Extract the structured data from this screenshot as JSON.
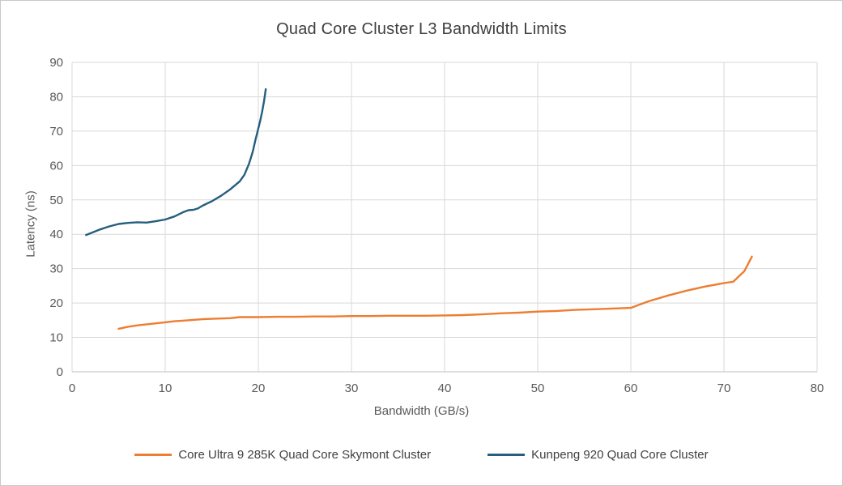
{
  "chart_data": {
    "type": "line",
    "title": "Quad Core Cluster L3 Bandwidth Limits",
    "xlabel": "Bandwidth (GB/s)",
    "ylabel": "Latency (ns)",
    "xlim": [
      0,
      80
    ],
    "ylim": [
      0,
      90
    ],
    "xtick_step": 10,
    "ytick_step": 10,
    "grid": true,
    "legend_position": "bottom",
    "colors": {
      "gridline": "#d9d9d9",
      "axis_line": "#bfbfbf",
      "tick_text": "#595959",
      "title_text": "#3f3f3f"
    },
    "series": [
      {
        "name": "Core Ultra 9 285K Quad Core Skymont Cluster",
        "color": "#ED7D31",
        "points": [
          [
            5,
            12.5
          ],
          [
            6,
            13.1
          ],
          [
            7,
            13.5
          ],
          [
            8,
            13.8
          ],
          [
            9,
            14.1
          ],
          [
            10,
            14.4
          ],
          [
            11,
            14.7
          ],
          [
            12,
            14.9
          ],
          [
            13,
            15.1
          ],
          [
            14,
            15.3
          ],
          [
            15,
            15.4
          ],
          [
            16,
            15.5
          ],
          [
            17,
            15.6
          ],
          [
            18,
            15.9
          ],
          [
            20,
            15.9
          ],
          [
            22,
            16.0
          ],
          [
            24,
            16.0
          ],
          [
            26,
            16.1
          ],
          [
            28,
            16.1
          ],
          [
            30,
            16.2
          ],
          [
            32,
            16.2
          ],
          [
            34,
            16.3
          ],
          [
            36,
            16.3
          ],
          [
            38,
            16.3
          ],
          [
            40,
            16.4
          ],
          [
            42,
            16.5
          ],
          [
            44,
            16.7
          ],
          [
            46,
            17.0
          ],
          [
            48,
            17.2
          ],
          [
            50,
            17.5
          ],
          [
            52,
            17.7
          ],
          [
            54,
            18.0
          ],
          [
            56,
            18.2
          ],
          [
            58,
            18.4
          ],
          [
            60,
            18.6
          ],
          [
            61,
            19.6
          ],
          [
            62,
            20.6
          ],
          [
            64,
            22.2
          ],
          [
            66,
            23.6
          ],
          [
            68,
            24.8
          ],
          [
            70,
            25.8
          ],
          [
            71,
            26.2
          ],
          [
            72.2,
            29.3
          ],
          [
            73,
            33.5
          ]
        ]
      },
      {
        "name": "Kunpeng 920 Quad Core Cluster",
        "color": "#255E7E",
        "points": [
          [
            1.5,
            39.8
          ],
          [
            2,
            40.3
          ],
          [
            3,
            41.4
          ],
          [
            4,
            42.3
          ],
          [
            5,
            43.0
          ],
          [
            6,
            43.3
          ],
          [
            7,
            43.5
          ],
          [
            8,
            43.4
          ],
          [
            9,
            43.8
          ],
          [
            10,
            44.3
          ],
          [
            11,
            45.2
          ],
          [
            12,
            46.5
          ],
          [
            12.5,
            47.0
          ],
          [
            13,
            47.1
          ],
          [
            13.5,
            47.5
          ],
          [
            14,
            48.3
          ],
          [
            15,
            49.6
          ],
          [
            16,
            51.2
          ],
          [
            17,
            53.1
          ],
          [
            18,
            55.4
          ],
          [
            18.5,
            57.3
          ],
          [
            19,
            60.5
          ],
          [
            19.4,
            64.0
          ],
          [
            19.7,
            67.5
          ],
          [
            20.0,
            70.8
          ],
          [
            20.2,
            73.0
          ],
          [
            20.4,
            75.5
          ],
          [
            20.6,
            78.5
          ],
          [
            20.8,
            82.2
          ]
        ]
      }
    ]
  }
}
